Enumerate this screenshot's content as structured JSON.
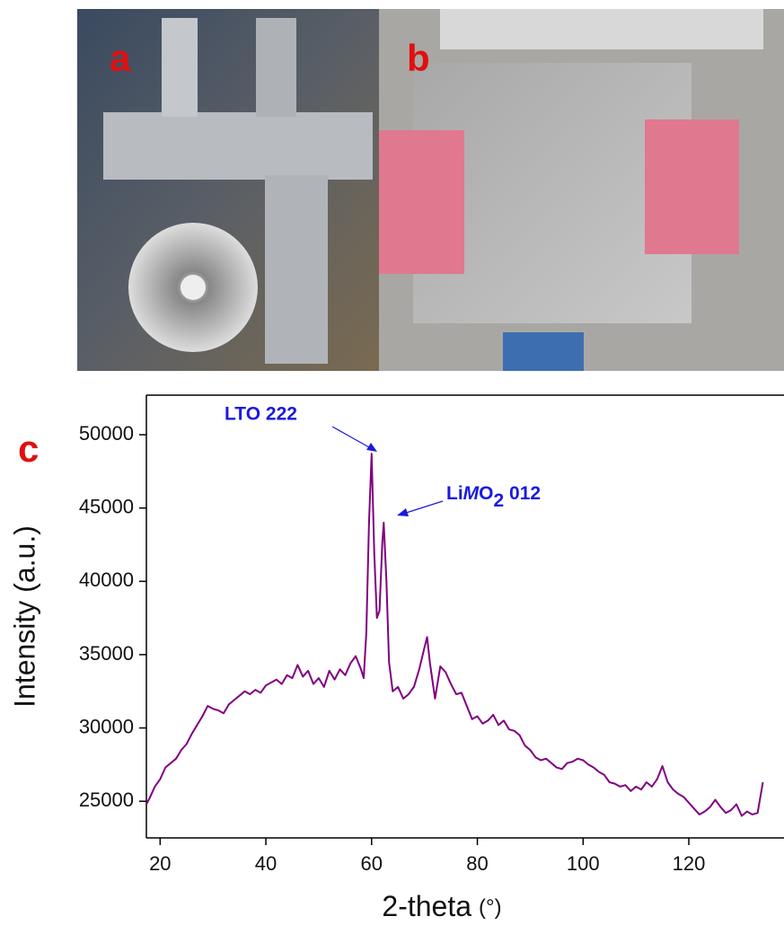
{
  "chart_data": {
    "type": "line",
    "panel_labels": [
      "a",
      "b",
      "c"
    ],
    "ylabel": "Intensity (a.u.)",
    "xlabel": "2-theta",
    "xlabel_unit": "(°)",
    "annotations": {
      "lto": "LTO  222",
      "limo_li": "Li",
      "limo_m": "M",
      "limo_o": "O",
      "limo_sub": "2",
      "limo_hkl": " 012"
    },
    "xlim": [
      17.4,
      138
    ],
    "ylim": [
      22500,
      52700
    ],
    "xticks": [
      20,
      40,
      60,
      80,
      100,
      120
    ],
    "yticks": [
      25000,
      30000,
      35000,
      40000,
      45000,
      50000
    ],
    "color": "#800080",
    "x": [
      17.4,
      18,
      19,
      20,
      21,
      22,
      23,
      24,
      25,
      26,
      27,
      28,
      29,
      30,
      31,
      32,
      33,
      34,
      35,
      36,
      37,
      38,
      39,
      40,
      41,
      42,
      43,
      44,
      45,
      46,
      47,
      48,
      49,
      50,
      51,
      52,
      53,
      54,
      55,
      56,
      57,
      58,
      58.5,
      59,
      59.5,
      60,
      60.5,
      61,
      61.5,
      62,
      62.3,
      62.8,
      63.3,
      64,
      65,
      66,
      67,
      68,
      69,
      70,
      70.5,
      71,
      72,
      73,
      74,
      75,
      76,
      77,
      78,
      79,
      80,
      81,
      82,
      83,
      84,
      85,
      86,
      87,
      88,
      89,
      90,
      91,
      92,
      93,
      94,
      95,
      96,
      97,
      98,
      99,
      100,
      101,
      102,
      103,
      104,
      105,
      106,
      107,
      108,
      109,
      110,
      111,
      112,
      113,
      114,
      115,
      116,
      117,
      118,
      119,
      120,
      121,
      122,
      123,
      124,
      125,
      126,
      127,
      128,
      129,
      130,
      131,
      132,
      133,
      134
    ],
    "values": [
      24800,
      25200,
      26000,
      26500,
      27300,
      27600,
      27900,
      28500,
      28900,
      29600,
      30200,
      30800,
      31500,
      31300,
      31200,
      31000,
      31600,
      31900,
      32200,
      32500,
      32300,
      32600,
      32400,
      32900,
      33100,
      33300,
      33000,
      33600,
      33400,
      34300,
      33500,
      33900,
      33000,
      33400,
      32800,
      33900,
      33300,
      34000,
      33600,
      34400,
      34900,
      34000,
      33400,
      36500,
      44000,
      48700,
      42000,
      37500,
      38000,
      42500,
      44000,
      40000,
      34500,
      32500,
      32800,
      32000,
      32300,
      32800,
      34000,
      35500,
      36200,
      34500,
      32000,
      34200,
      33800,
      33000,
      32300,
      32400,
      31500,
      30600,
      30800,
      30300,
      30500,
      30900,
      30200,
      30500,
      29900,
      29800,
      29500,
      28800,
      28500,
      28000,
      27800,
      27900,
      27600,
      27300,
      27200,
      27600,
      27700,
      27900,
      27800,
      27500,
      27300,
      27000,
      26800,
      26300,
      26200,
      26000,
      26100,
      25700,
      26000,
      25800,
      26300,
      26000,
      26500,
      27400,
      26300,
      25800,
      25500,
      25300,
      24900,
      24500,
      24100,
      24300,
      24600,
      25100,
      24600,
      24200,
      24400,
      24800,
      24000,
      24300,
      24100,
      24200,
      26300
    ]
  }
}
